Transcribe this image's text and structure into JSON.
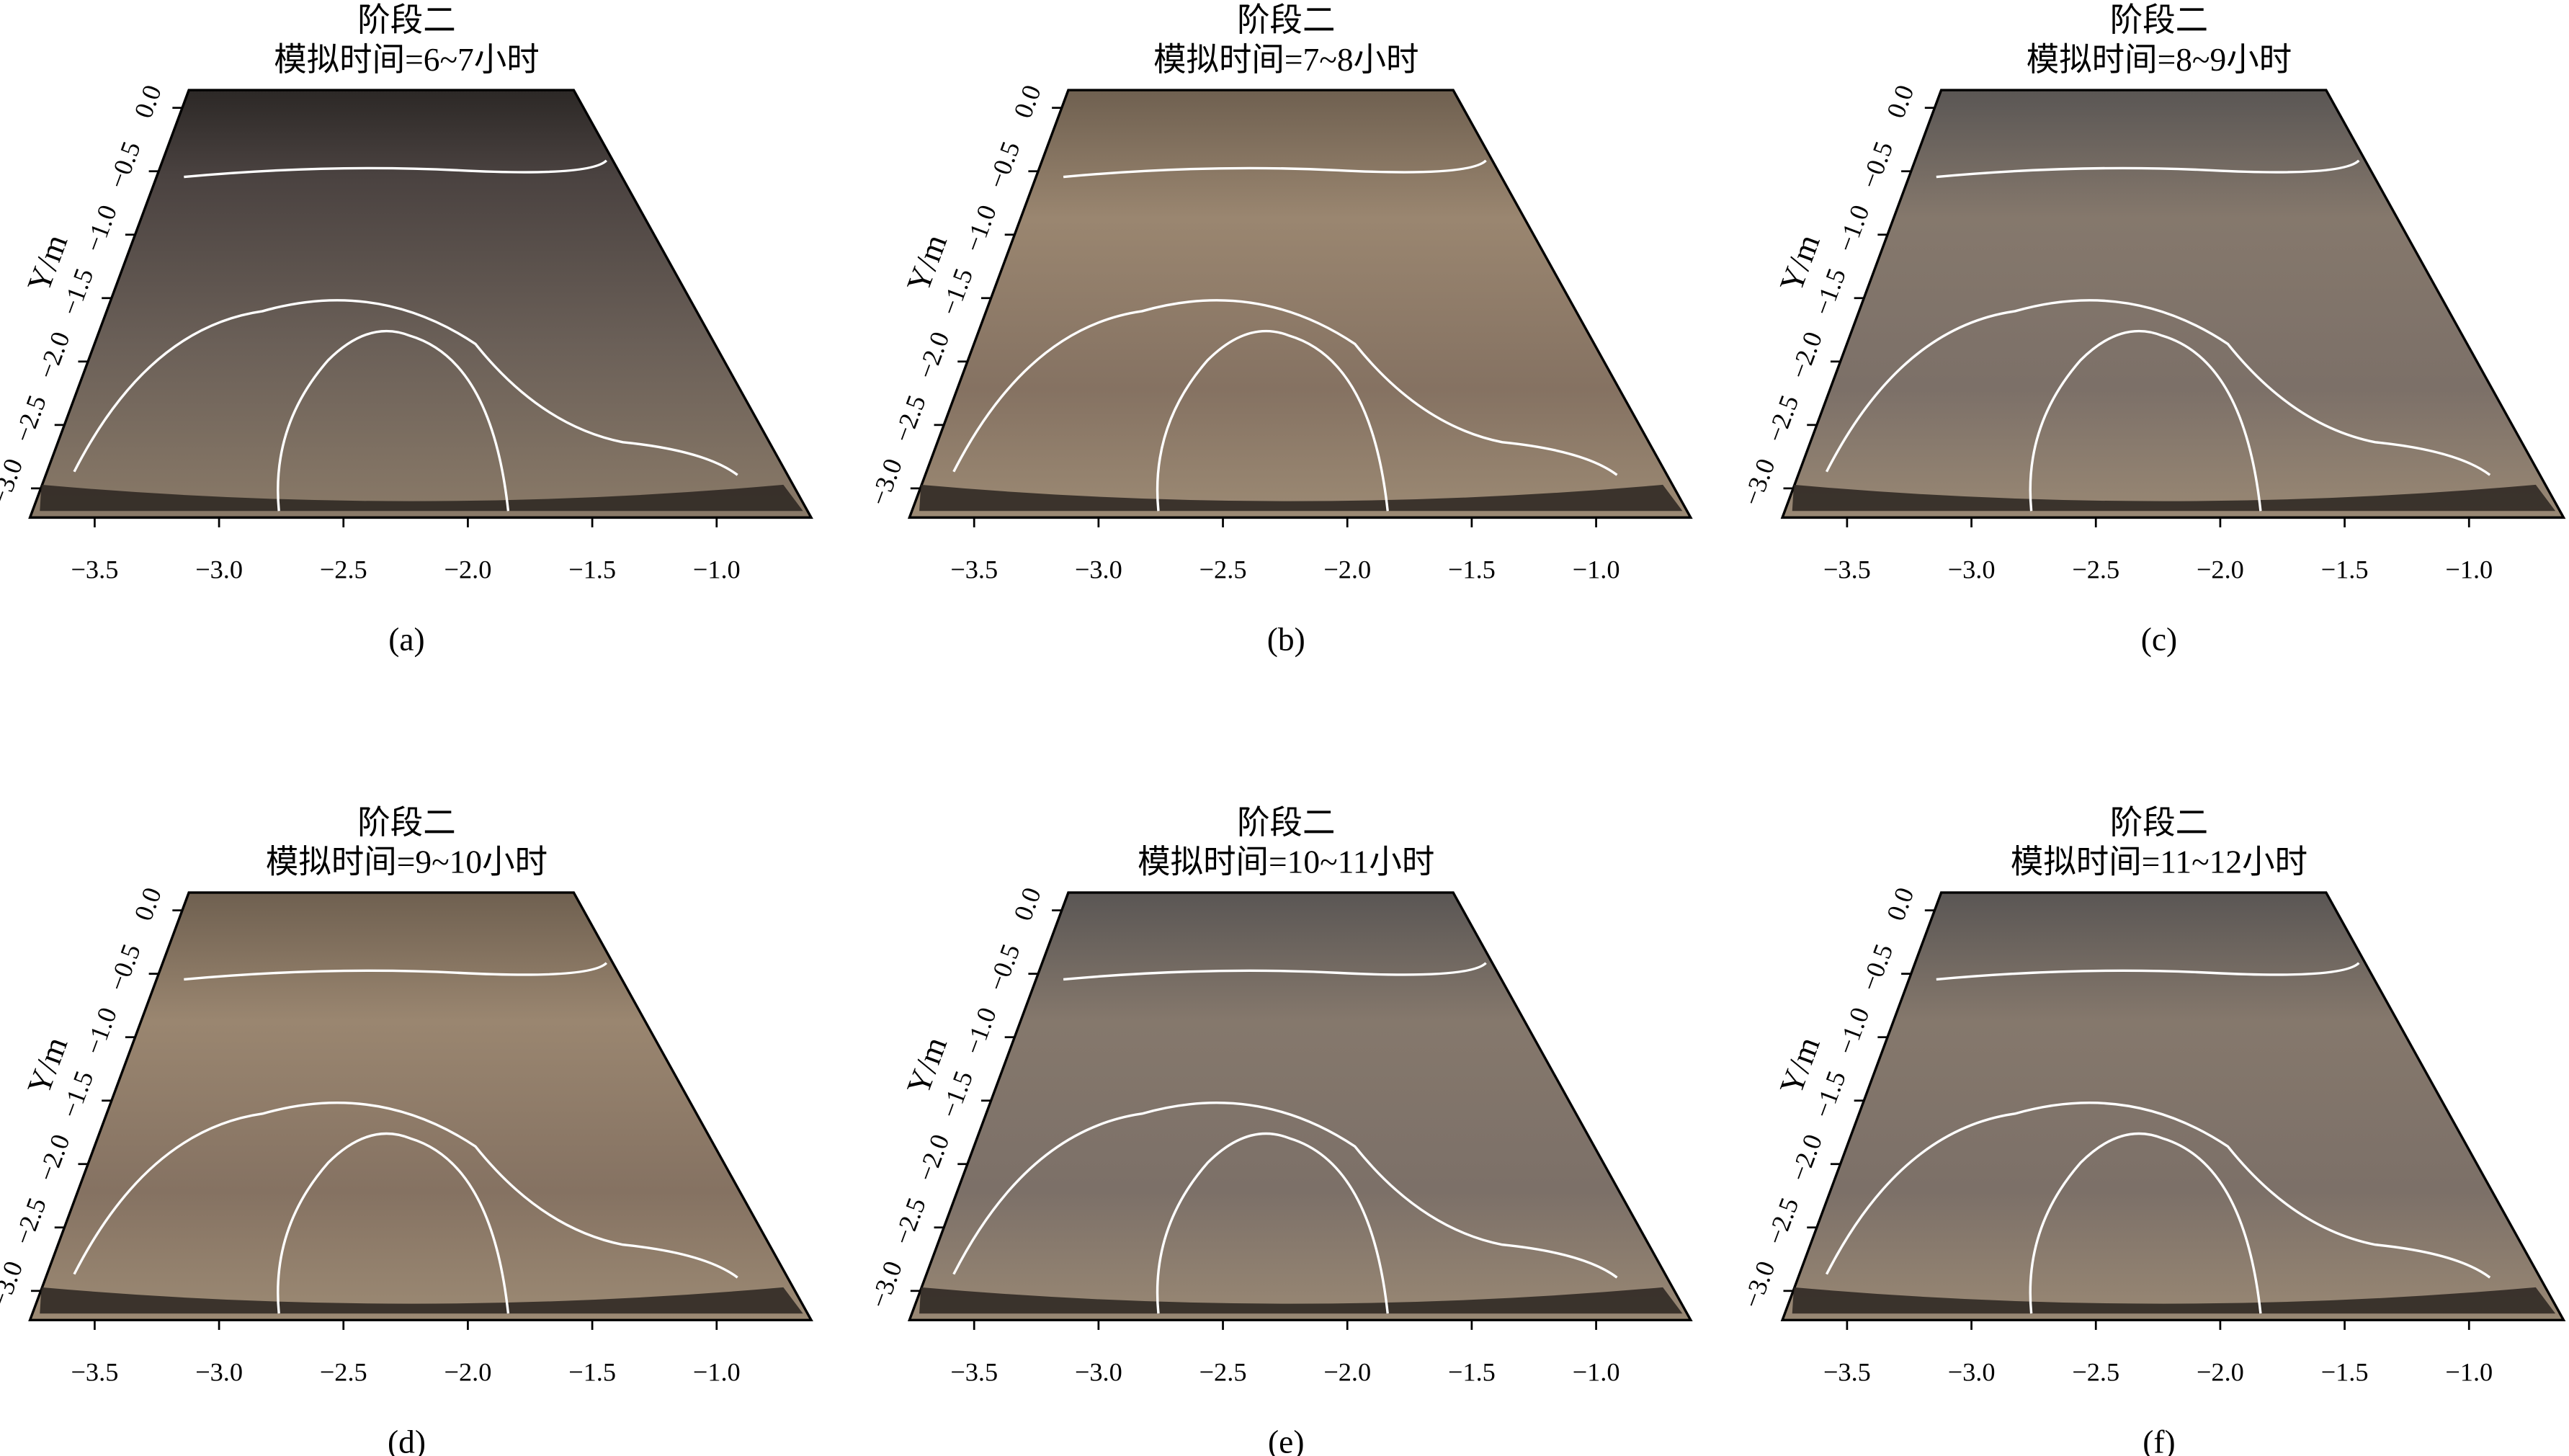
{
  "chart_data": [
    {
      "type": "photo",
      "title": "阶段二",
      "subtitle": "模拟时间=6~7小时",
      "caption": "(a)",
      "ylabel": "Y/m",
      "xlim": [
        -3.76,
        -0.62
      ],
      "ylim": [
        -3.23,
        0.14
      ],
      "xticks": [
        {
          "value": -3.5,
          "label": "−3.5"
        },
        {
          "value": -3.0,
          "label": "−3.0"
        },
        {
          "value": -2.5,
          "label": "−2.5"
        },
        {
          "value": -2.0,
          "label": "−2.0"
        },
        {
          "value": -1.5,
          "label": "−1.5"
        },
        {
          "value": -1.0,
          "label": "−1.0"
        }
      ],
      "yticks": [
        {
          "value": -3.0,
          "label": "−3.0"
        },
        {
          "value": -2.5,
          "label": "−2.5"
        },
        {
          "value": -2.0,
          "label": "−2.0"
        },
        {
          "value": -1.5,
          "label": "−1.5"
        },
        {
          "value": -1.0,
          "label": "−1.0"
        },
        {
          "value": -0.5,
          "label": "−0.5"
        },
        {
          "value": 0.0,
          "label": "0.0"
        }
      ]
    },
    {
      "type": "photo",
      "title": "阶段二",
      "subtitle": "模拟时间=7~8小时",
      "caption": "(b)",
      "ylabel": "Y/m",
      "xlim": [
        -3.76,
        -0.62
      ],
      "ylim": [
        -3.23,
        0.14
      ],
      "xticks": [
        {
          "value": -3.5,
          "label": "−3.5"
        },
        {
          "value": -3.0,
          "label": "−3.0"
        },
        {
          "value": -2.5,
          "label": "−2.5"
        },
        {
          "value": -2.0,
          "label": "−2.0"
        },
        {
          "value": -1.5,
          "label": "−1.5"
        },
        {
          "value": -1.0,
          "label": "−1.0"
        }
      ],
      "yticks": [
        {
          "value": -3.0,
          "label": "−3.0"
        },
        {
          "value": -2.5,
          "label": "−2.5"
        },
        {
          "value": -2.0,
          "label": "−2.0"
        },
        {
          "value": -1.5,
          "label": "−1.5"
        },
        {
          "value": -1.0,
          "label": "−1.0"
        },
        {
          "value": -0.5,
          "label": "−0.5"
        },
        {
          "value": 0.0,
          "label": "0.0"
        }
      ]
    },
    {
      "type": "photo",
      "title": "阶段二",
      "subtitle": "模拟时间=8~9小时",
      "caption": "(c)",
      "ylabel": "Y/m",
      "xlim": [
        -3.76,
        -0.62
      ],
      "ylim": [
        -3.23,
        0.14
      ],
      "xticks": [
        {
          "value": -3.5,
          "label": "−3.5"
        },
        {
          "value": -3.0,
          "label": "−3.0"
        },
        {
          "value": -2.5,
          "label": "−2.5"
        },
        {
          "value": -2.0,
          "label": "−2.0"
        },
        {
          "value": -1.5,
          "label": "−1.5"
        },
        {
          "value": -1.0,
          "label": "−1.0"
        }
      ],
      "yticks": [
        {
          "value": -3.0,
          "label": "−3.0"
        },
        {
          "value": -2.5,
          "label": "−2.5"
        },
        {
          "value": -2.0,
          "label": "−2.0"
        },
        {
          "value": -1.5,
          "label": "−1.5"
        },
        {
          "value": -1.0,
          "label": "−1.0"
        },
        {
          "value": -0.5,
          "label": "−0.5"
        },
        {
          "value": 0.0,
          "label": "0.0"
        }
      ]
    },
    {
      "type": "photo",
      "title": "阶段二",
      "subtitle": "模拟时间=9~10小时",
      "caption": "(d)",
      "ylabel": "Y/m",
      "xlim": [
        -3.76,
        -0.62
      ],
      "ylim": [
        -3.23,
        0.14
      ],
      "xticks": [
        {
          "value": -3.5,
          "label": "−3.5"
        },
        {
          "value": -3.0,
          "label": "−3.0"
        },
        {
          "value": -2.5,
          "label": "−2.5"
        },
        {
          "value": -2.0,
          "label": "−2.0"
        },
        {
          "value": -1.5,
          "label": "−1.5"
        },
        {
          "value": -1.0,
          "label": "−1.0"
        }
      ],
      "yticks": [
        {
          "value": -3.0,
          "label": "−3.0"
        },
        {
          "value": -2.5,
          "label": "−2.5"
        },
        {
          "value": -2.0,
          "label": "−2.0"
        },
        {
          "value": -1.5,
          "label": "−1.5"
        },
        {
          "value": -1.0,
          "label": "−1.0"
        },
        {
          "value": -0.5,
          "label": "−0.5"
        },
        {
          "value": 0.0,
          "label": "0.0"
        }
      ]
    },
    {
      "type": "photo",
      "title": "阶段二",
      "subtitle": "模拟时间=10~11小时",
      "caption": "(e)",
      "ylabel": "Y/m",
      "xlim": [
        -3.76,
        -0.62
      ],
      "ylim": [
        -3.23,
        0.14
      ],
      "xticks": [
        {
          "value": -3.5,
          "label": "−3.5"
        },
        {
          "value": -3.0,
          "label": "−3.0"
        },
        {
          "value": -2.5,
          "label": "−2.5"
        },
        {
          "value": -2.0,
          "label": "−2.0"
        },
        {
          "value": -1.5,
          "label": "−1.5"
        },
        {
          "value": -1.0,
          "label": "−1.0"
        }
      ],
      "yticks": [
        {
          "value": -3.0,
          "label": "−3.0"
        },
        {
          "value": -2.5,
          "label": "−2.5"
        },
        {
          "value": -2.0,
          "label": "−2.0"
        },
        {
          "value": -1.5,
          "label": "−1.5"
        },
        {
          "value": -1.0,
          "label": "−1.0"
        },
        {
          "value": -0.5,
          "label": "−0.5"
        },
        {
          "value": 0.0,
          "label": "0.0"
        }
      ]
    },
    {
      "type": "photo",
      "title": "阶段二",
      "subtitle": "模拟时间=11~12小时",
      "caption": "(f)",
      "ylabel": "Y/m",
      "xlim": [
        -3.76,
        -0.62
      ],
      "ylim": [
        -3.23,
        0.14
      ],
      "xticks": [
        {
          "value": -3.5,
          "label": "−3.5"
        },
        {
          "value": -3.0,
          "label": "−3.0"
        },
        {
          "value": -2.5,
          "label": "−2.5"
        },
        {
          "value": -2.0,
          "label": "−2.0"
        },
        {
          "value": -1.5,
          "label": "−1.5"
        },
        {
          "value": -1.0,
          "label": "−1.0"
        }
      ],
      "yticks": [
        {
          "value": -3.0,
          "label": "−3.0"
        },
        {
          "value": -2.5,
          "label": "−2.5"
        },
        {
          "value": -2.0,
          "label": "−2.0"
        },
        {
          "value": -1.5,
          "label": "−1.5"
        },
        {
          "value": -1.0,
          "label": "−1.0"
        },
        {
          "value": -0.5,
          "label": "−0.5"
        },
        {
          "value": 0.0,
          "label": "0.0"
        }
      ]
    }
  ]
}
